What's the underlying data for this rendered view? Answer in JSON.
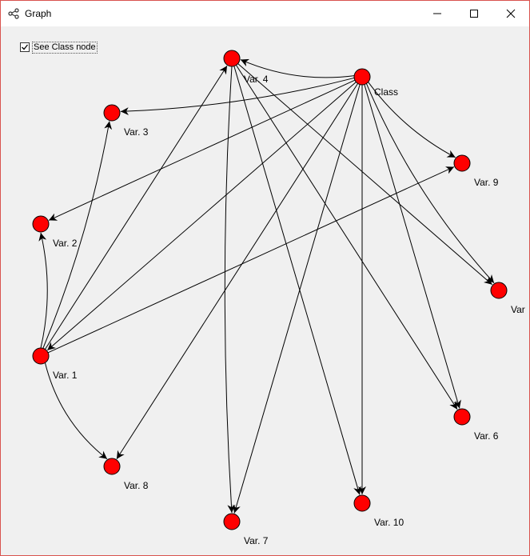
{
  "window": {
    "title": "Graph",
    "icon": "graph-share-icon",
    "controls": [
      "minimize-icon",
      "maximize-icon",
      "close-icon"
    ]
  },
  "toggle": {
    "label": "See Class node",
    "checked": true
  },
  "graph": {
    "node_color": "#ff0000",
    "edge_color": "#000000",
    "nodes": [
      {
        "id": "class",
        "label": "Class"
      },
      {
        "id": "v4",
        "label": "Var. 4"
      },
      {
        "id": "v3",
        "label": "Var. 3"
      },
      {
        "id": "v2",
        "label": "Var. 2"
      },
      {
        "id": "v1",
        "label": "Var. 1"
      },
      {
        "id": "v8",
        "label": "Var. 8"
      },
      {
        "id": "v7",
        "label": "Var. 7"
      },
      {
        "id": "v10",
        "label": "Var. 10"
      },
      {
        "id": "v6",
        "label": "Var. 6"
      },
      {
        "id": "v5",
        "label": "Var"
      },
      {
        "id": "v9",
        "label": "Var. 9"
      }
    ],
    "edges": [
      {
        "from": "class",
        "to": "v4"
      },
      {
        "from": "class",
        "to": "v3"
      },
      {
        "from": "class",
        "to": "v2"
      },
      {
        "from": "class",
        "to": "v1"
      },
      {
        "from": "class",
        "to": "v8"
      },
      {
        "from": "class",
        "to": "v7"
      },
      {
        "from": "class",
        "to": "v10"
      },
      {
        "from": "class",
        "to": "v6"
      },
      {
        "from": "class",
        "to": "v5"
      },
      {
        "from": "class",
        "to": "v9"
      },
      {
        "from": "v1",
        "to": "v2"
      },
      {
        "from": "v1",
        "to": "v3"
      },
      {
        "from": "v1",
        "to": "v4"
      },
      {
        "from": "v1",
        "to": "v8"
      },
      {
        "from": "v1",
        "to": "v9"
      },
      {
        "from": "v4",
        "to": "v7"
      },
      {
        "from": "v4",
        "to": "v10"
      },
      {
        "from": "v4",
        "to": "v6"
      },
      {
        "from": "v4",
        "to": "v5"
      }
    ]
  }
}
